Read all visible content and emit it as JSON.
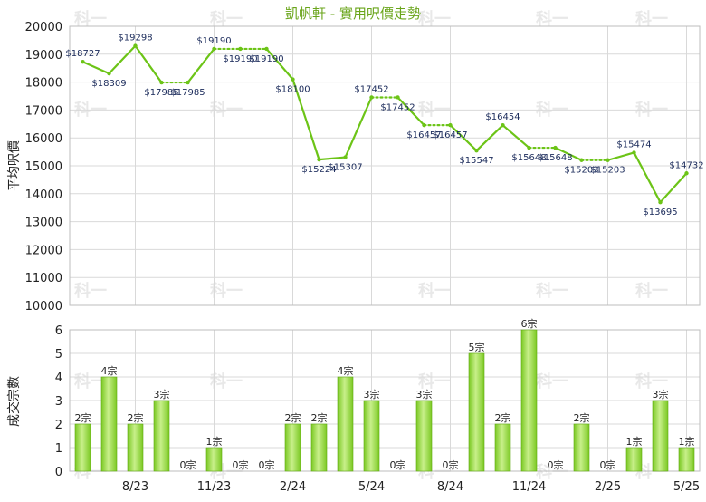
{
  "chart_data": [
    {
      "type": "line",
      "title": "凱帆軒 - 實用呎價走勢",
      "ylabel": "平均呎價",
      "ylim": [
        10000,
        20000
      ],
      "yticks": [
        "10000",
        "11000",
        "12000",
        "13000",
        "14000",
        "15000",
        "16000",
        "17000",
        "18000",
        "19000",
        "20000"
      ],
      "line_color": "#6cc417",
      "points": [
        {
          "value": 18727,
          "label": "$18727",
          "estimated": false
        },
        {
          "value": 18309,
          "label": "$18309",
          "estimated": false
        },
        {
          "value": 19298,
          "label": "$19298",
          "estimated": false
        },
        {
          "value": 17985,
          "label": "$17985",
          "estimated": false
        },
        {
          "value": 17985,
          "label": "$17985",
          "estimated": true
        },
        {
          "value": 19190,
          "label": "$19190",
          "estimated": false
        },
        {
          "value": 19190,
          "label": "$19190",
          "estimated": true
        },
        {
          "value": 19190,
          "label": "$19190",
          "estimated": true
        },
        {
          "value": 18100,
          "label": "$18100",
          "estimated": false
        },
        {
          "value": 15224,
          "label": "$15224",
          "estimated": false
        },
        {
          "value": 15307,
          "label": "$15307",
          "estimated": false
        },
        {
          "value": 17452,
          "label": "$17452",
          "estimated": false
        },
        {
          "value": 17452,
          "label": "$17452",
          "estimated": true
        },
        {
          "value": 16457,
          "label": "$16457",
          "estimated": false
        },
        {
          "value": 16457,
          "label": "$16457",
          "estimated": true
        },
        {
          "value": 15547,
          "label": "$15547",
          "estimated": false
        },
        {
          "value": 16454,
          "label": "$16454",
          "estimated": false
        },
        {
          "value": 15648,
          "label": "$15648",
          "estimated": false
        },
        {
          "value": 15648,
          "label": "$15648",
          "estimated": true
        },
        {
          "value": 15203,
          "label": "$15203",
          "estimated": false
        },
        {
          "value": 15203,
          "label": "$15203",
          "estimated": true
        },
        {
          "value": 15474,
          "label": "$15474",
          "estimated": false
        },
        {
          "value": 13695,
          "label": "$13695",
          "estimated": false
        },
        {
          "value": 14732,
          "label": "$14732",
          "estimated": false
        }
      ]
    },
    {
      "type": "bar",
      "ylabel": "成交宗數",
      "ylim": [
        0,
        6
      ],
      "yticks": [
        "0",
        "1",
        "2",
        "3",
        "4",
        "5",
        "6"
      ],
      "bar_color": "#7bc924",
      "bar_highlight": "#c8ef8a",
      "x_tick_labels": [
        {
          "index": 2,
          "label": "8/23"
        },
        {
          "index": 5,
          "label": "11/23"
        },
        {
          "index": 8,
          "label": "2/24"
        },
        {
          "index": 11,
          "label": "5/24"
        },
        {
          "index": 14,
          "label": "8/24"
        },
        {
          "index": 17,
          "label": "11/24"
        },
        {
          "index": 20,
          "label": "2/25"
        },
        {
          "index": 23,
          "label": "5/25"
        }
      ],
      "values": [
        2,
        4,
        2,
        3,
        0,
        1,
        0,
        0,
        2,
        2,
        4,
        3,
        0,
        3,
        0,
        5,
        2,
        6,
        0,
        2,
        0,
        1,
        3,
        1
      ],
      "labels": [
        "2宗",
        "4宗",
        "2宗",
        "3宗",
        "0宗",
        "1宗",
        "0宗",
        "0宗",
        "2宗",
        "2宗",
        "4宗",
        "3宗",
        "0宗",
        "3宗",
        "0宗",
        "5宗",
        "2宗",
        "6宗",
        "0宗",
        "2宗",
        "0宗",
        "1宗",
        "3宗",
        "1宗"
      ]
    }
  ],
  "watermark": "科一"
}
